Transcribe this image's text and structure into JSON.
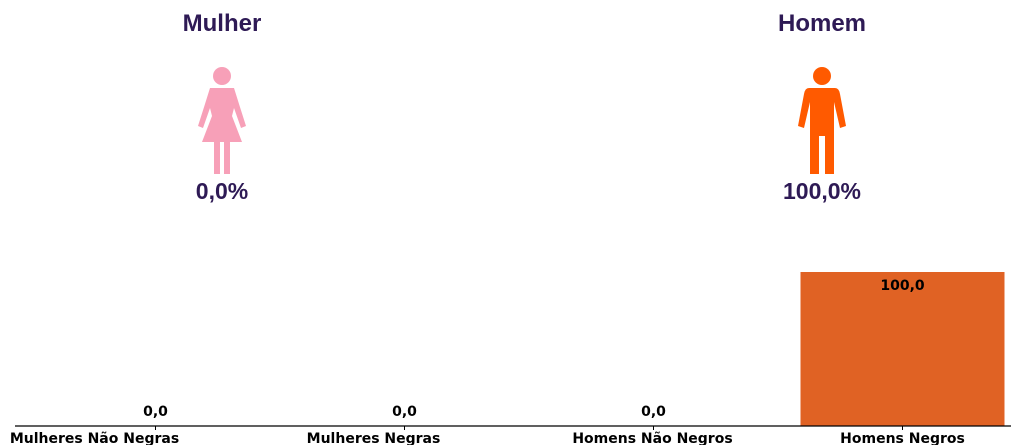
{
  "panels": {
    "female": {
      "title": "Mulher",
      "value": "0,0%",
      "icon": "female-person-icon",
      "color": "#f7a0b8"
    },
    "male": {
      "title": "Homem",
      "value": "100,0%",
      "icon": "male-person-icon",
      "color": "#ff5a00"
    }
  },
  "chart_data": {
    "type": "bar",
    "categories": [
      "Mulheres Não Negras",
      "Mulheres Negras",
      "Homens Não Negros",
      "Homens Negros"
    ],
    "values": [
      0.0,
      0.0,
      0.0,
      100.0
    ],
    "value_labels": [
      "0,0",
      "0,0",
      "0,0",
      "100,0"
    ],
    "ylim": [
      0,
      100
    ],
    "bar_color": "#e06224",
    "grid": false,
    "title": "",
    "xlabel": "",
    "ylabel": ""
  }
}
